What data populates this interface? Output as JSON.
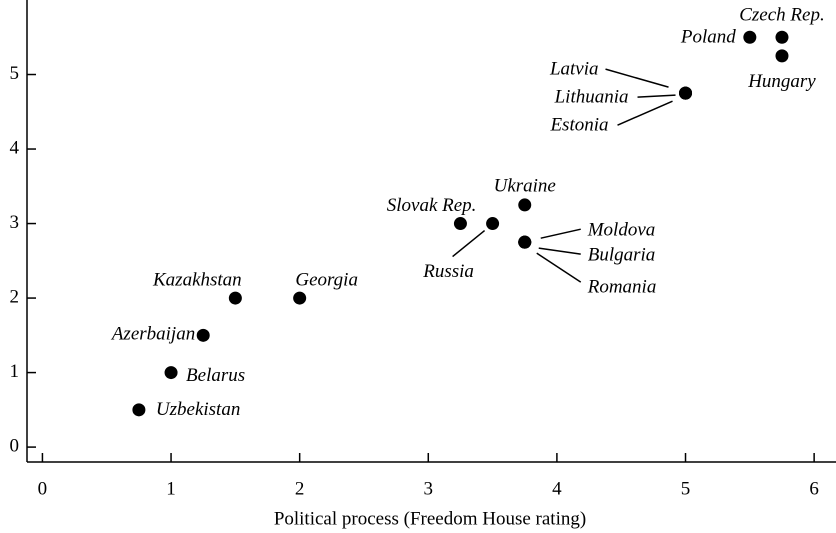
{
  "chart_data": {
    "type": "scatter",
    "xlabel": "Political process (Freedom House rating)",
    "labels": [
      "Czech Rep.",
      "Poland",
      "Hungary",
      "Latvia",
      "Lithuania",
      "Estonia",
      "Ukraine",
      "Slovak Rep.",
      "Russia",
      "Moldova",
      "Bulgaria",
      "Romania",
      "Kazakhstan",
      "Georgia",
      "Azerbaijan",
      "Belarus",
      "Uzbekistan"
    ],
    "x": [
      5.75,
      5.5,
      5.75,
      5,
      5,
      5,
      3.75,
      3.25,
      3.5,
      3.75,
      3.75,
      3.75,
      1.5,
      2,
      1.25,
      1,
      0.75
    ],
    "values": [
      5.5,
      5.5,
      5.25,
      4.75,
      4.75,
      4.75,
      3.25,
      3,
      3,
      2.75,
      2.75,
      2.75,
      2,
      2,
      1.5,
      1,
      0.5
    ],
    "color": "#000000",
    "xlim": [
      -0.12,
      6.17
    ],
    "ylim": [
      -0.2,
      6
    ],
    "xticks": [
      0,
      1,
      2,
      3,
      4,
      5,
      6
    ],
    "yticks": [
      0,
      1,
      2,
      3,
      4,
      5
    ]
  }
}
